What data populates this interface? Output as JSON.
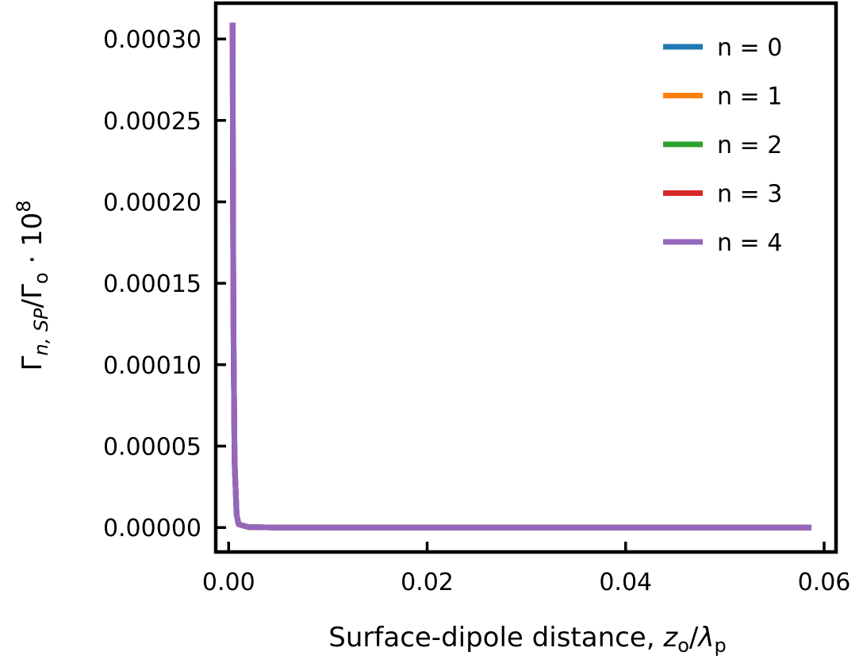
{
  "chart_data": {
    "type": "line",
    "xlabel": {
      "main": "Surface-dipole distance, ",
      "var1": "z",
      "sub1": "o",
      "slash": "/",
      "var2": "λ",
      "sub2": "p"
    },
    "ylabel": {
      "g1": "Γ",
      "sub1": "n, SP",
      "slash": "/Γ",
      "sub2": "o",
      "mult": " · 10",
      "sup": "8"
    },
    "xlim": [
      -0.0013,
      0.0612
    ],
    "ylim": [
      -1.5e-05,
      0.000322
    ],
    "x_ticks": [
      0.0,
      0.02,
      0.04,
      0.06
    ],
    "x_tick_labels": [
      "0.00",
      "0.02",
      "0.04",
      "0.06"
    ],
    "y_ticks": [
      0.0,
      5e-05,
      0.0001,
      0.00015,
      0.0002,
      0.00025,
      0.0003
    ],
    "y_tick_labels": [
      "0.00000",
      "0.00005",
      "0.00010",
      "0.00015",
      "0.00020",
      "0.00025",
      "0.00030"
    ],
    "grid": false,
    "legend_position": "top-right",
    "series": [
      {
        "name": "n = 0",
        "color": "#1f77b4",
        "x": [
          0.0004,
          0.00042,
          0.00045,
          0.0005,
          0.0006,
          0.0008,
          0.001,
          0.002,
          0.005,
          0.01,
          0.02,
          0.03,
          0.04,
          0.05,
          0.0587
        ],
        "y": [
          0.00031,
          0.00025,
          0.00018,
          0.00011,
          4e-05,
          8e-06,
          2e-06,
          3e-07,
          0.0,
          0.0,
          0.0,
          0.0,
          0.0,
          0.0,
          0.0
        ]
      },
      {
        "name": "n = 1",
        "color": "#ff7f0e",
        "x": [
          0.0004,
          0.00042,
          0.00045,
          0.0005,
          0.0006,
          0.0008,
          0.001,
          0.002,
          0.005,
          0.01,
          0.02,
          0.03,
          0.04,
          0.05,
          0.0587
        ],
        "y": [
          0.00031,
          0.00025,
          0.00018,
          0.00011,
          4e-05,
          8e-06,
          2e-06,
          3e-07,
          0.0,
          0.0,
          0.0,
          0.0,
          0.0,
          0.0,
          0.0
        ]
      },
      {
        "name": "n = 2",
        "color": "#2ca02c",
        "x": [
          0.0004,
          0.00042,
          0.00045,
          0.0005,
          0.0006,
          0.0008,
          0.001,
          0.002,
          0.005,
          0.01,
          0.02,
          0.03,
          0.04,
          0.05,
          0.0587
        ],
        "y": [
          0.00031,
          0.00025,
          0.00018,
          0.00011,
          4e-05,
          8e-06,
          2e-06,
          3e-07,
          0.0,
          0.0,
          0.0,
          0.0,
          0.0,
          0.0,
          0.0
        ]
      },
      {
        "name": "n = 3",
        "color": "#d62728",
        "x": [
          0.0004,
          0.00042,
          0.00045,
          0.0005,
          0.0006,
          0.0008,
          0.001,
          0.002,
          0.005,
          0.01,
          0.02,
          0.03,
          0.04,
          0.05,
          0.0587
        ],
        "y": [
          0.00031,
          0.00025,
          0.00018,
          0.00011,
          4e-05,
          8e-06,
          2e-06,
          3e-07,
          0.0,
          0.0,
          0.0,
          0.0,
          0.0,
          0.0,
          0.0
        ]
      },
      {
        "name": "n = 4",
        "color": "#9467bd",
        "x": [
          0.0004,
          0.00042,
          0.00045,
          0.0005,
          0.0006,
          0.0008,
          0.001,
          0.002,
          0.005,
          0.01,
          0.02,
          0.03,
          0.04,
          0.05,
          0.0587
        ],
        "y": [
          0.00031,
          0.00025,
          0.00018,
          0.00011,
          4e-05,
          8e-06,
          2e-06,
          3e-07,
          0.0,
          0.0,
          0.0,
          0.0,
          0.0,
          0.0,
          0.0
        ]
      }
    ]
  }
}
